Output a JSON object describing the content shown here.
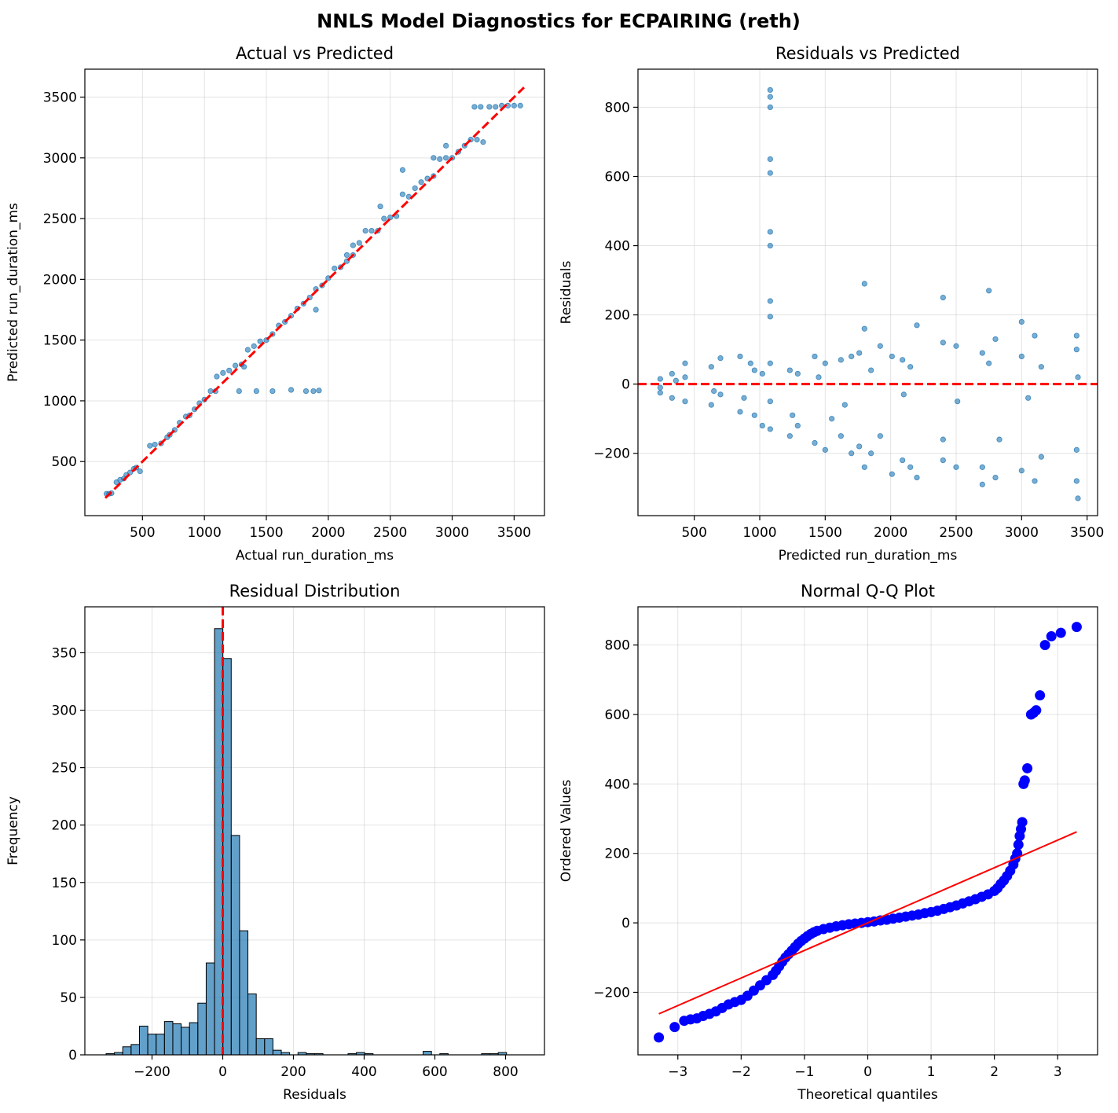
{
  "figure": {
    "title": "NNLS Model Diagnostics for ECPAIRING (reth)"
  },
  "colors": {
    "point": "#1f77b4",
    "ref": "#ff0000",
    "qq_point": "#0000ff",
    "grid": "#b0b0b0"
  },
  "chart_data": [
    {
      "id": "actual-vs-predicted",
      "type": "scatter",
      "title": "Actual vs Predicted",
      "xlabel": "Actual run_duration_ms",
      "ylabel": "Predicted run_duration_ms",
      "xlim": [
        35,
        3745
      ],
      "ylim": [
        55,
        3730
      ],
      "xticks": [
        500,
        1000,
        1500,
        2000,
        2500,
        3000,
        3500
      ],
      "yticks": [
        500,
        1000,
        1500,
        2000,
        2500,
        3000,
        3500
      ],
      "xtick_labels": [
        "500",
        "1000",
        "1500",
        "2000",
        "2500",
        "3000",
        "3500"
      ],
      "ytick_labels": [
        "500",
        "1000",
        "1500",
        "2000",
        "2500",
        "3000",
        "3500"
      ],
      "reference_line": [
        [
          200,
          200
        ],
        [
          3580,
          3580
        ]
      ],
      "points": [
        [
          210,
          235
        ],
        [
          230,
          235
        ],
        [
          250,
          240
        ],
        [
          290,
          330
        ],
        [
          320,
          350
        ],
        [
          350,
          360
        ],
        [
          370,
          390
        ],
        [
          400,
          410
        ],
        [
          430,
          440
        ],
        [
          450,
          450
        ],
        [
          480,
          420
        ],
        [
          560,
          630
        ],
        [
          600,
          640
        ],
        [
          650,
          650
        ],
        [
          700,
          700
        ],
        [
          720,
          720
        ],
        [
          760,
          760
        ],
        [
          800,
          820
        ],
        [
          850,
          870
        ],
        [
          880,
          880
        ],
        [
          920,
          930
        ],
        [
          960,
          980
        ],
        [
          1000,
          1010
        ],
        [
          1050,
          1080
        ],
        [
          1090,
          1080
        ],
        [
          1100,
          1200
        ],
        [
          1150,
          1230
        ],
        [
          1200,
          1250
        ],
        [
          1250,
          1290
        ],
        [
          1300,
          1300
        ],
        [
          1350,
          1420
        ],
        [
          1400,
          1450
        ],
        [
          1450,
          1490
        ],
        [
          1500,
          1500
        ],
        [
          1550,
          1550
        ],
        [
          1600,
          1620
        ],
        [
          1650,
          1650
        ],
        [
          1700,
          1700
        ],
        [
          1750,
          1760
        ],
        [
          1800,
          1800
        ],
        [
          1850,
          1850
        ],
        [
          1900,
          1920
        ],
        [
          1950,
          1950
        ],
        [
          2000,
          2010
        ],
        [
          2050,
          2090
        ],
        [
          2100,
          2100
        ],
        [
          2150,
          2150
        ],
        [
          2200,
          2200
        ],
        [
          2250,
          2300
        ],
        [
          2300,
          2400
        ],
        [
          2350,
          2400
        ],
        [
          2400,
          2400
        ],
        [
          2450,
          2500
        ],
        [
          2500,
          2510
        ],
        [
          2550,
          2520
        ],
        [
          2600,
          2700
        ],
        [
          2650,
          2680
        ],
        [
          2700,
          2750
        ],
        [
          2750,
          2800
        ],
        [
          2800,
          2830
        ],
        [
          2850,
          2850
        ],
        [
          2900,
          2990
        ],
        [
          2950,
          3000
        ],
        [
          3000,
          3000
        ],
        [
          3050,
          3050
        ],
        [
          3100,
          3100
        ],
        [
          3150,
          3150
        ],
        [
          3200,
          3150
        ],
        [
          3250,
          3130
        ],
        [
          3300,
          3420
        ],
        [
          3350,
          3420
        ],
        [
          3400,
          3430
        ],
        [
          3450,
          3430
        ],
        [
          3500,
          3430
        ],
        [
          3550,
          3430
        ],
        [
          1550,
          1080
        ],
        [
          1700,
          1090
        ],
        [
          1820,
          1080
        ],
        [
          1880,
          1080
        ],
        [
          1925,
          1085
        ],
        [
          1280,
          1080
        ],
        [
          1420,
          1080
        ],
        [
          1320,
          1280
        ],
        [
          1900,
          1750
        ],
        [
          2200,
          2280
        ],
        [
          2420,
          2600
        ],
        [
          2600,
          2900
        ],
        [
          2850,
          3000
        ],
        [
          2950,
          3100
        ],
        [
          3180,
          3420
        ],
        [
          3230,
          3420
        ],
        [
          2150,
          2200
        ]
      ]
    },
    {
      "id": "residuals-vs-predicted",
      "type": "scatter",
      "title": "Residuals vs Predicted",
      "xlabel": "Predicted run_duration_ms",
      "ylabel": "Residuals",
      "xlim": [
        70,
        3580
      ],
      "ylim": [
        -380,
        910
      ],
      "xticks": [
        500,
        1000,
        1500,
        2000,
        2500,
        3000,
        3500
      ],
      "yticks": [
        -200,
        0,
        200,
        400,
        600,
        800
      ],
      "xtick_labels": [
        "500",
        "1000",
        "1500",
        "2000",
        "2500",
        "3000",
        "3500"
      ],
      "ytick_labels": [
        "−200",
        "0",
        "200",
        "400",
        "600",
        "800"
      ],
      "reference_y": 0,
      "points": [
        [
          240,
          15
        ],
        [
          240,
          -10
        ],
        [
          240,
          -25
        ],
        [
          330,
          30
        ],
        [
          330,
          -40
        ],
        [
          360,
          10
        ],
        [
          430,
          60
        ],
        [
          430,
          -50
        ],
        [
          430,
          20
        ],
        [
          630,
          50
        ],
        [
          630,
          -60
        ],
        [
          650,
          -20
        ],
        [
          700,
          75
        ],
        [
          700,
          -30
        ],
        [
          850,
          80
        ],
        [
          850,
          -80
        ],
        [
          880,
          -40
        ],
        [
          930,
          60
        ],
        [
          960,
          -90
        ],
        [
          960,
          40
        ],
        [
          1020,
          -120
        ],
        [
          1020,
          30
        ],
        [
          1080,
          850
        ],
        [
          1080,
          830
        ],
        [
          1080,
          800
        ],
        [
          1080,
          650
        ],
        [
          1080,
          610
        ],
        [
          1080,
          440
        ],
        [
          1080,
          400
        ],
        [
          1080,
          240
        ],
        [
          1080,
          195
        ],
        [
          1080,
          60
        ],
        [
          1080,
          -50
        ],
        [
          1080,
          -130
        ],
        [
          1230,
          40
        ],
        [
          1230,
          -150
        ],
        [
          1250,
          -90
        ],
        [
          1290,
          30
        ],
        [
          1290,
          -120
        ],
        [
          1420,
          80
        ],
        [
          1420,
          -170
        ],
        [
          1450,
          20
        ],
        [
          1500,
          60
        ],
        [
          1500,
          -190
        ],
        [
          1550,
          -100
        ],
        [
          1620,
          70
        ],
        [
          1620,
          -150
        ],
        [
          1650,
          -60
        ],
        [
          1700,
          80
        ],
        [
          1700,
          -200
        ],
        [
          1760,
          90
        ],
        [
          1760,
          -180
        ],
        [
          1800,
          290
        ],
        [
          1800,
          160
        ],
        [
          1800,
          -240
        ],
        [
          1850,
          40
        ],
        [
          1850,
          -200
        ],
        [
          1920,
          110
        ],
        [
          1920,
          -150
        ],
        [
          2010,
          80
        ],
        [
          2010,
          -260
        ],
        [
          2090,
          70
        ],
        [
          2090,
          -220
        ],
        [
          2100,
          -30
        ],
        [
          2150,
          50
        ],
        [
          2150,
          -240
        ],
        [
          2200,
          170
        ],
        [
          2200,
          -270
        ],
        [
          2400,
          250
        ],
        [
          2400,
          120
        ],
        [
          2400,
          -220
        ],
        [
          2400,
          -160
        ],
        [
          2500,
          110
        ],
        [
          2500,
          -240
        ],
        [
          2510,
          -50
        ],
        [
          2700,
          90
        ],
        [
          2700,
          -290
        ],
        [
          2700,
          -240
        ],
        [
          2750,
          270
        ],
        [
          2750,
          60
        ],
        [
          2800,
          130
        ],
        [
          2800,
          -270
        ],
        [
          2830,
          -160
        ],
        [
          3000,
          180
        ],
        [
          3000,
          80
        ],
        [
          3000,
          -250
        ],
        [
          3050,
          -40
        ],
        [
          3100,
          140
        ],
        [
          3100,
          -280
        ],
        [
          3150,
          -210
        ],
        [
          3150,
          50
        ],
        [
          3420,
          140
        ],
        [
          3420,
          100
        ],
        [
          3420,
          -190
        ],
        [
          3420,
          -280
        ],
        [
          3430,
          -330
        ],
        [
          3430,
          20
        ]
      ]
    },
    {
      "id": "residual-distribution",
      "type": "bar",
      "title": "Residual Distribution",
      "xlabel": "Residuals",
      "ylabel": "Frequency",
      "xlim": [
        -390,
        910
      ],
      "ylim": [
        0,
        390
      ],
      "xticks": [
        -200,
        0,
        200,
        400,
        600,
        800
      ],
      "yticks": [
        0,
        50,
        100,
        150,
        200,
        250,
        300,
        350
      ],
      "xtick_labels": [
        "−200",
        "0",
        "200",
        "400",
        "600",
        "800"
      ],
      "ytick_labels": [
        "0",
        "50",
        "100",
        "150",
        "200",
        "250",
        "300",
        "350"
      ],
      "bin_start": -330,
      "bin_width": 23.6,
      "values": [
        1,
        2,
        7,
        9,
        25,
        18,
        18,
        29,
        27,
        24,
        28,
        45,
        80,
        371,
        345,
        191,
        108,
        53,
        14,
        14,
        4,
        2,
        0,
        2,
        1,
        1,
        0,
        0,
        0,
        1,
        2,
        1,
        0,
        0,
        0,
        0,
        0,
        0,
        3,
        0,
        1,
        0,
        0,
        0,
        0,
        1,
        1,
        2
      ],
      "reference_x": 0
    },
    {
      "id": "normal-qq-plot",
      "type": "scatter",
      "title": "Normal Q-Q Plot",
      "xlabel": "Theoretical quantiles",
      "ylabel": "Ordered Values",
      "xlim": [
        -3.63,
        3.63
      ],
      "ylim": [
        -380,
        910
      ],
      "xticks": [
        -3,
        -2,
        -1,
        0,
        1,
        2,
        3
      ],
      "yticks": [
        -200,
        0,
        200,
        400,
        600,
        800
      ],
      "xtick_labels": [
        "−3",
        "−2",
        "−1",
        "0",
        "1",
        "2",
        "3"
      ],
      "ytick_labels": [
        "−200",
        "0",
        "200",
        "400",
        "600",
        "800"
      ],
      "fit_line": [
        [
          -3.3,
          -262
        ],
        [
          3.3,
          262
        ]
      ],
      "points": [
        [
          -3.3,
          -330
        ],
        [
          -3.05,
          -300
        ],
        [
          -2.9,
          -282
        ],
        [
          -2.8,
          -278
        ],
        [
          -2.7,
          -275
        ],
        [
          -2.6,
          -268
        ],
        [
          -2.5,
          -262
        ],
        [
          -2.4,
          -255
        ],
        [
          -2.3,
          -245
        ],
        [
          -2.2,
          -235
        ],
        [
          -2.1,
          -228
        ],
        [
          -2.0,
          -222
        ],
        [
          -1.9,
          -210
        ],
        [
          -1.8,
          -195
        ],
        [
          -1.7,
          -180
        ],
        [
          -1.6,
          -165
        ],
        [
          -1.5,
          -150
        ],
        [
          -1.45,
          -138
        ],
        [
          -1.4,
          -125
        ],
        [
          -1.35,
          -112
        ],
        [
          -1.3,
          -100
        ],
        [
          -1.25,
          -90
        ],
        [
          -1.2,
          -80
        ],
        [
          -1.15,
          -70
        ],
        [
          -1.1,
          -60
        ],
        [
          -1.05,
          -52
        ],
        [
          -1.0,
          -45
        ],
        [
          -0.95,
          -38
        ],
        [
          -0.9,
          -32
        ],
        [
          -0.85,
          -27
        ],
        [
          -0.8,
          -23
        ],
        [
          -0.7,
          -18
        ],
        [
          -0.6,
          -14
        ],
        [
          -0.5,
          -10
        ],
        [
          -0.4,
          -7
        ],
        [
          -0.3,
          -4
        ],
        [
          -0.2,
          -2
        ],
        [
          -0.1,
          0
        ],
        [
          0,
          2
        ],
        [
          0.1,
          4
        ],
        [
          0.2,
          7
        ],
        [
          0.3,
          9
        ],
        [
          0.4,
          12
        ],
        [
          0.5,
          15
        ],
        [
          0.6,
          18
        ],
        [
          0.7,
          21
        ],
        [
          0.8,
          24
        ],
        [
          0.9,
          28
        ],
        [
          1.0,
          31
        ],
        [
          1.1,
          35
        ],
        [
          1.2,
          40
        ],
        [
          1.3,
          45
        ],
        [
          1.4,
          50
        ],
        [
          1.5,
          56
        ],
        [
          1.6,
          62
        ],
        [
          1.7,
          68
        ],
        [
          1.8,
          75
        ],
        [
          1.9,
          82
        ],
        [
          2.0,
          92
        ],
        [
          2.05,
          100
        ],
        [
          2.1,
          112
        ],
        [
          2.15,
          122
        ],
        [
          2.2,
          135
        ],
        [
          2.25,
          150
        ],
        [
          2.3,
          168
        ],
        [
          2.33,
          185
        ],
        [
          2.36,
          200
        ],
        [
          2.38,
          225
        ],
        [
          2.4,
          250
        ],
        [
          2.42,
          270
        ],
        [
          2.44,
          290
        ],
        [
          2.46,
          400
        ],
        [
          2.48,
          410
        ],
        [
          2.52,
          445
        ],
        [
          2.58,
          600
        ],
        [
          2.62,
          605
        ],
        [
          2.66,
          612
        ],
        [
          2.72,
          655
        ],
        [
          2.8,
          800
        ],
        [
          2.9,
          825
        ],
        [
          3.05,
          835
        ],
        [
          3.3,
          852
        ]
      ]
    }
  ]
}
